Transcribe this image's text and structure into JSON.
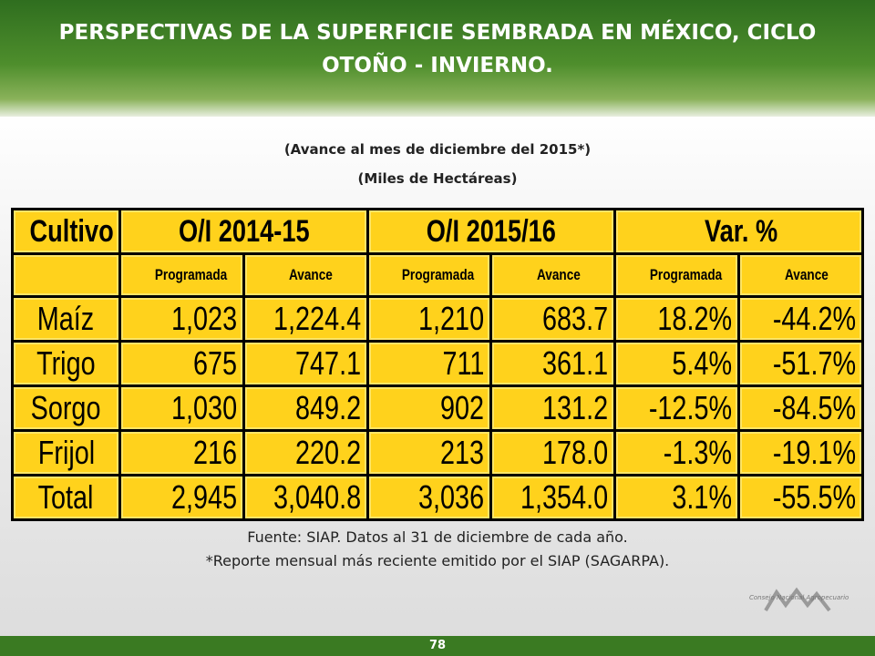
{
  "header": {
    "title": "PERSPECTIVAS DE LA SUPERFICIE SEMBRADA EN MÉXICO, CICLO OTOÑO - INVIERNO.",
    "subtitles": [
      "(Avance al mes de diciembre del 2015*)",
      "(Miles de Hectáreas)"
    ]
  },
  "table": {
    "group_headers": [
      "Cultivo",
      "O/I 2014-15",
      "O/I 2015/16",
      "Var. %"
    ],
    "sub_headers": [
      "Programada",
      "Avance",
      "Programada",
      "Avance",
      "Programada",
      "Avance"
    ],
    "rows": [
      [
        "Maíz",
        "1,023",
        "1,224.4",
        "1,210",
        "683.7",
        "18.2%",
        "-44.2%"
      ],
      [
        "Trigo",
        "675",
        "747.1",
        "711",
        "361.1",
        "5.4%",
        "-51.7%"
      ],
      [
        "Sorgo",
        "1,030",
        "849.2",
        "902",
        "131.2",
        "-12.5%",
        "-84.5%"
      ],
      [
        "Frijol",
        "216",
        "220.2",
        "213",
        "178.0",
        "-1.3%",
        "-19.1%"
      ],
      [
        "Total",
        "2,945",
        "3,040.8",
        "3,036",
        "1,354.0",
        "3.1%",
        "-55.5%"
      ]
    ]
  },
  "footnotes": [
    "Fuente: SIAP. Datos al 31 de diciembre de cada año.",
    "*Reporte mensual más reciente emitido por el SIAP (SAGARPA)."
  ],
  "logo_caption": "Consejo Nacional Agropecuario",
  "page_number": "78"
}
